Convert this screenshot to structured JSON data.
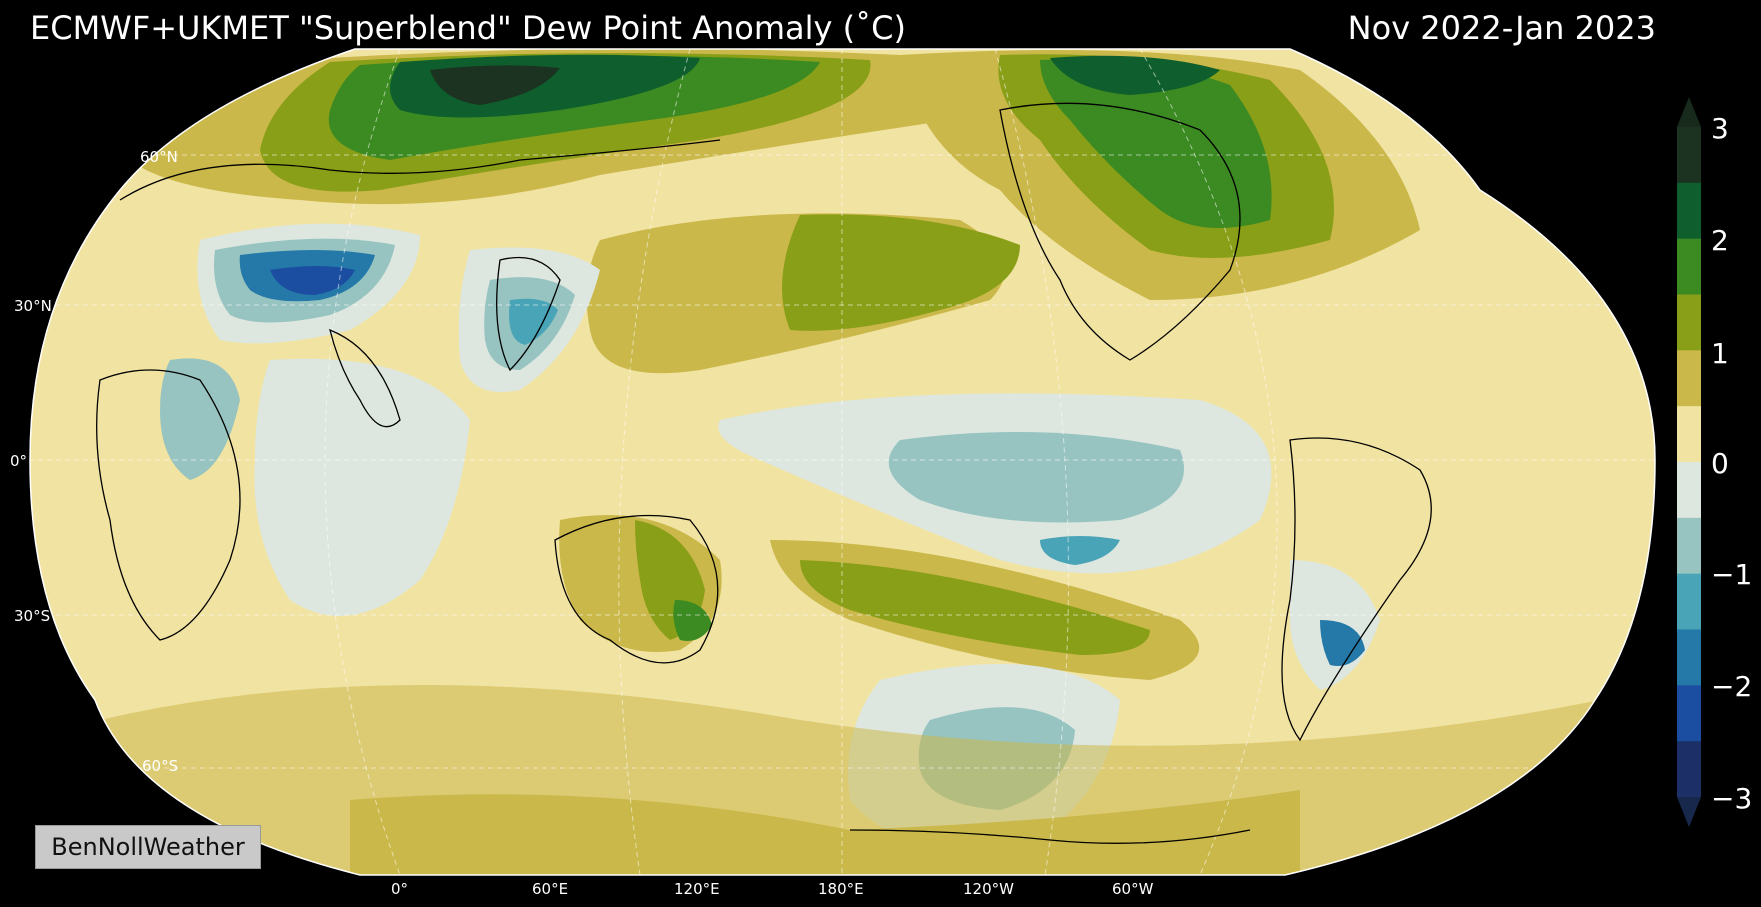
{
  "header": {
    "title": "ECMWF+UKMET \"Superblend\" Dew Point Anomaly (˚C)",
    "period": "Nov 2022-Jan 2023"
  },
  "map": {
    "projection": "Robinson",
    "central_longitude": "180°",
    "lat_labels": [
      "60°N",
      "30°N",
      "0°",
      "30°S",
      "60°S"
    ],
    "lon_labels": [
      "0°",
      "60°E",
      "120°E",
      "180°E",
      "120°W",
      "60°W"
    ],
    "colors": {
      "ocean_neutral": "#f1e3a2",
      "slightly_positive": "#cbb84a",
      "positive": "#8a9f18",
      "strong_positive": "#3b8a22",
      "very_strong_positive": "#0f5f2e",
      "extreme_positive": "#1b3320",
      "slightly_negative": "#dde7e0",
      "negative": "#97c4c0",
      "strong_negative": "#48a4b6",
      "very_negative": "#2479a8",
      "extreme_negative": "#1b4ea0"
    }
  },
  "colorbar": {
    "ticks": [
      "3",
      "2",
      "1",
      "0",
      "−1",
      "−2",
      "−3"
    ],
    "colors": [
      "#1b3320",
      "#0f5f2e",
      "#3b8a22",
      "#8a9f18",
      "#cbb84a",
      "#f1e3a2",
      "#dde7e0",
      "#97c4c0",
      "#48a4b6",
      "#2479a8",
      "#1b4ea0",
      "#1c2f66"
    ],
    "extend_top": "#172a1b",
    "extend_bottom": "#18284d"
  },
  "credit": "BenNollWeather"
}
